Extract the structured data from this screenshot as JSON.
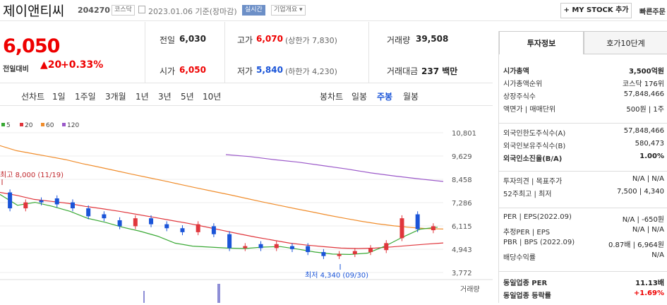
{
  "header": {
    "company": "제이앤티씨",
    "code": "204270",
    "market": "코스닥",
    "date": "2023.01.06 기준(장마감)",
    "realtime": "실시간",
    "company_overview": "기업개요 ▾",
    "my_stock_button": "+ MY STOCK 추가",
    "quick_button": "빠른주문"
  },
  "price": {
    "current": "6,050",
    "change_label": "전일대비",
    "change_amount": "▲20",
    "change_pct": "+0.33%"
  },
  "stats": {
    "prev_close_label": "전일",
    "prev_close": "6,030",
    "open_label": "시가",
    "open": "6,050",
    "high_label": "고가",
    "high": "6,070",
    "upper_limit": "(상한가 7,830)",
    "low_label": "저가",
    "low": "5,840",
    "lower_limit": "(하한가 4,230)",
    "volume_label": "거래량",
    "volume": "39,508",
    "value_label": "거래대금",
    "value": "237 백만"
  },
  "periods": {
    "line_label": "선차트",
    "line_tabs": [
      "1일",
      "1주일",
      "3개월",
      "1년",
      "3년",
      "5년",
      "10년"
    ],
    "candle_label": "봉차트",
    "candle_tabs": [
      "일봉",
      "주봉",
      "월봉"
    ],
    "active_candle": "주봉"
  },
  "chart_data": {
    "type": "line",
    "legend": [
      {
        "name": "5",
        "color": "#3aa935"
      },
      {
        "name": "20",
        "color": "#e0363c"
      },
      {
        "name": "60",
        "color": "#f08d2c"
      },
      {
        "name": "120",
        "color": "#9b59c9"
      }
    ],
    "y_ticks": [
      "10,801",
      "9,629",
      "8,458",
      "7,286",
      "6,115",
      "4,943",
      "3,772"
    ],
    "ylim": [
      3772,
      10801
    ],
    "annotations": {
      "high": "최고 8,000 (11/19)",
      "low": "최저 4,340 (09/30)"
    },
    "volume_label": "거래량",
    "ma60": [
      10150,
      9900,
      9750,
      9600,
      9450,
      9250,
      9080,
      8900,
      8720,
      8550,
      8380,
      8200,
      8020,
      7850,
      7680,
      7500,
      7320,
      7150,
      6980,
      6820,
      6650,
      6500,
      6350,
      6220,
      6120,
      6040,
      5980,
      5960
    ],
    "ma120": [
      9700,
      9600,
      9450,
      9320,
      9150,
      8980,
      8780,
      8620,
      8480,
      8350
    ],
    "ma20": [
      7800,
      7650,
      7450,
      7350,
      7250,
      7100,
      6980,
      6850,
      6700,
      6550,
      6400,
      6250,
      6080,
      5900,
      5720,
      5550,
      5400,
      5250,
      5150,
      5070,
      5000,
      4980,
      5000,
      5060,
      5130,
      5200,
      5260
    ],
    "ma5": [
      7700,
      7150,
      7300,
      7100,
      6850,
      6500,
      6300,
      6050,
      5850,
      5600,
      5250,
      5100,
      5050,
      5000,
      4980,
      5050,
      5080,
      4950,
      4800,
      4700,
      4680,
      4750,
      5100,
      5550,
      5950,
      6050
    ],
    "candles": [
      {
        "o": 7800,
        "c": 7000
      },
      {
        "o": 7000,
        "c": 7300
      },
      {
        "o": 7400,
        "c": 7300
      },
      {
        "o": 7500,
        "c": 7200
      },
      {
        "o": 7300,
        "c": 7000
      },
      {
        "o": 7000,
        "c": 6600
      },
      {
        "o": 6700,
        "c": 6500
      },
      {
        "o": 6400,
        "c": 6100
      },
      {
        "o": 6100,
        "c": 6500
      },
      {
        "o": 6500,
        "c": 6200
      },
      {
        "o": 6200,
        "c": 6000
      },
      {
        "o": 6000,
        "c": 5800
      },
      {
        "o": 5800,
        "c": 6200
      },
      {
        "o": 6100,
        "c": 5700
      },
      {
        "o": 5700,
        "c": 5000
      },
      {
        "o": 5000,
        "c": 5100
      },
      {
        "o": 5200,
        "c": 5000
      },
      {
        "o": 5000,
        "c": 5200
      },
      {
        "o": 5100,
        "c": 4950
      },
      {
        "o": 5100,
        "c": 4800
      },
      {
        "o": 4800,
        "c": 4600
      },
      {
        "o": 4600,
        "c": 4700
      },
      {
        "o": 4700,
        "c": 4850
      },
      {
        "o": 4800,
        "c": 5000
      },
      {
        "o": 4900,
        "c": 5250
      },
      {
        "o": 5500,
        "c": 6500
      },
      {
        "o": 6700,
        "c": 5950
      },
      {
        "o": 5900,
        "c": 6100
      }
    ]
  },
  "right_panel": {
    "tab_invest": "투자정보",
    "tab_orderbook": "호가10단계",
    "rows1": [
      {
        "k": "시가총액",
        "v": "3,500억원"
      },
      {
        "k": "시가총액순위",
        "v": "코스닥 176위"
      },
      {
        "k": "상장주식수",
        "v": "57,848,466"
      },
      {
        "k": "액면가 | 매매단위",
        "v": "500원 | 1주"
      }
    ],
    "rows2": [
      {
        "k": "외국인한도주식수(A)",
        "v": "57,848,466"
      },
      {
        "k": "외국인보유주식수(B)",
        "v": "580,473"
      },
      {
        "k": "외국인소진율(B/A)",
        "v": "1.00%"
      }
    ],
    "rows3": [
      {
        "k": "투자의견 | 목표주가",
        "v": "N/A | N/A"
      },
      {
        "k": "52주최고 | 최저",
        "v": "7,500 | 4,340"
      }
    ],
    "rows4": [
      {
        "k": "PER | EPS(2022.09)",
        "v": "N/A | -650원"
      },
      {
        "k": "추정PER | EPS",
        "v": "N/A | N/A"
      },
      {
        "k": "PBR | BPS (2022.09)",
        "v": "0.87배 | 6,964원"
      },
      {
        "k": "배당수익률",
        "v": "N/A"
      }
    ],
    "rows5": [
      {
        "k": "동일업종 PER",
        "v": "11.13배"
      },
      {
        "k": "동일업종 등락률",
        "v": "+1.69%"
      }
    ]
  }
}
